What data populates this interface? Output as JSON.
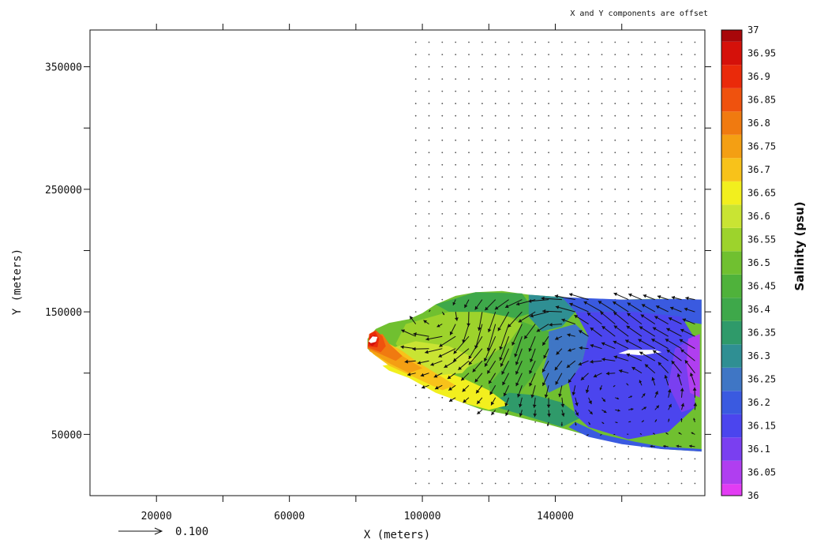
{
  "chart_data": {
    "type": "heatmap",
    "title": "",
    "note": "X and Y components are offset",
    "xlabel": "X (meters)",
    "ylabel": "Y (meters)",
    "xlim": [
      0,
      185000
    ],
    "ylim": [
      0,
      380000
    ],
    "x_ticks": [
      20000,
      60000,
      100000,
      140000
    ],
    "y_ticks": [
      50000,
      150000,
      250000,
      350000
    ],
    "x_ticks_unlabeled": [
      40000,
      80000,
      120000,
      160000
    ],
    "y_ticks_unlabeled": [
      100000,
      200000,
      300000
    ],
    "reference_vector": {
      "label": "0.100",
      "magnitude": 0.1
    },
    "colorbar": {
      "title": "Salinity (psu)",
      "levels": [
        "36",
        "36.05",
        "36.1",
        "36.15",
        "36.2",
        "36.25",
        "36.3",
        "36.35",
        "36.4",
        "36.45",
        "36.5",
        "36.55",
        "36.6",
        "36.65",
        "36.7",
        "36.75",
        "36.8",
        "36.85",
        "36.9",
        "36.95",
        "37"
      ],
      "colors": [
        "#e23cf3",
        "#b03ef0",
        "#7a3ff0",
        "#4b45ee",
        "#3a5ae0",
        "#3f76c5",
        "#2f8f93",
        "#2f9a6a",
        "#3ea84a",
        "#4fb23b",
        "#70c030",
        "#9dd32c",
        "#c9e433",
        "#f2ef1e",
        "#f8c21a",
        "#f49f13",
        "#f07a10",
        "#ef520e",
        "#ea2a0a",
        "#d5110a",
        "#a8070a"
      ]
    },
    "salinity_field": {
      "outline": [
        [
          83500,
          128000
        ],
        [
          86000,
          136000
        ],
        [
          90000,
          141000
        ],
        [
          96000,
          144000
        ],
        [
          100000,
          149000
        ],
        [
          104000,
          156000
        ],
        [
          110000,
          163000
        ],
        [
          116000,
          166000
        ],
        [
          124000,
          167000
        ],
        [
          132000,
          164000
        ],
        [
          142000,
          162000
        ],
        [
          152000,
          160000
        ],
        [
          160000,
          160000
        ],
        [
          168000,
          160500
        ],
        [
          176000,
          160500
        ],
        [
          184000,
          160000
        ],
        [
          184000,
          36000
        ],
        [
          172000,
          38000
        ],
        [
          162000,
          42000
        ],
        [
          154000,
          46000
        ],
        [
          146000,
          52000
        ],
        [
          138000,
          58000
        ],
        [
          132000,
          62000
        ],
        [
          126000,
          66000
        ],
        [
          118000,
          70000
        ],
        [
          110000,
          78000
        ],
        [
          104000,
          86000
        ],
        [
          98000,
          95000
        ],
        [
          94000,
          102000
        ],
        [
          90000,
          108000
        ],
        [
          86000,
          114000
        ],
        [
          83500,
          120000
        ]
      ],
      "patches": [
        {
          "level": "36.55",
          "points": [
            [
              95000,
              140000
            ],
            [
              108000,
              150000
            ],
            [
              122000,
              152000
            ],
            [
              130000,
              140000
            ],
            [
              126000,
              125000
            ],
            [
              118000,
              110000
            ],
            [
              110000,
              100000
            ],
            [
              102000,
              98000
            ],
            [
              96000,
              108000
            ],
            [
              92000,
              124000
            ]
          ]
        },
        {
          "level": "36.4",
          "points": [
            [
              104000,
              156000
            ],
            [
              116000,
              166000
            ],
            [
              130000,
              165000
            ],
            [
              134000,
              150000
            ],
            [
              128000,
              145000
            ],
            [
              118000,
              150000
            ],
            [
              108000,
              150000
            ]
          ]
        },
        {
          "level": "36.45",
          "points": [
            [
              130000,
              142000
            ],
            [
              138000,
              134000
            ],
            [
              138000,
              118000
            ],
            [
              134000,
              100000
            ],
            [
              128000,
              80000
            ],
            [
              122000,
              75000
            ],
            [
              120000,
              90000
            ],
            [
              126000,
              110000
            ]
          ]
        },
        {
          "level": "36.3",
          "points": [
            [
              132000,
              164000
            ],
            [
              142000,
              162000
            ],
            [
              146000,
              150000
            ],
            [
              142000,
              138000
            ],
            [
              136000,
              134000
            ],
            [
              132000,
              146000
            ]
          ]
        },
        {
          "level": "36.25",
          "points": [
            [
              138000,
              134000
            ],
            [
              146000,
              140000
            ],
            [
              150000,
              130000
            ],
            [
              148000,
              108000
            ],
            [
              144000,
              92000
            ],
            [
              138000,
              84000
            ],
            [
              136000,
              100000
            ],
            [
              138000,
              118000
            ]
          ]
        },
        {
          "level": "36.35",
          "points": [
            [
              120000,
              74000
            ],
            [
              130000,
              66000
            ],
            [
              142000,
              56000
            ],
            [
              148000,
              64000
            ],
            [
              142000,
              76000
            ],
            [
              134000,
              82000
            ],
            [
              126000,
              84000
            ]
          ]
        },
        {
          "level": "36.2",
          "points": [
            [
              142000,
              162000
            ],
            [
              160000,
              160000
            ],
            [
              176000,
              160500
            ],
            [
              184000,
              160000
            ],
            [
              184000,
              140000
            ],
            [
              170000,
              146000
            ],
            [
              156000,
              150000
            ],
            [
              146000,
              150000
            ]
          ]
        },
        {
          "level": "36.15",
          "points": [
            [
              146000,
              150000
            ],
            [
              164000,
              150000
            ],
            [
              178000,
              146000
            ],
            [
              182000,
              128000
            ],
            [
              182000,
              72000
            ],
            [
              174000,
              52000
            ],
            [
              162000,
              46000
            ],
            [
              150000,
              56000
            ],
            [
              146000,
              66000
            ],
            [
              144000,
              92000
            ],
            [
              148000,
              108000
            ],
            [
              150000,
              130000
            ]
          ]
        },
        {
          "level": "36.2",
          "points": [
            [
              146000,
              60000
            ],
            [
              154000,
              50000
            ],
            [
              164000,
              44000
            ],
            [
              172000,
              40000
            ],
            [
              184000,
              38000
            ],
            [
              184000,
              36000
            ],
            [
              172000,
              38000
            ],
            [
              160000,
              42000
            ],
            [
              150000,
              48000
            ],
            [
              144000,
              56000
            ]
          ]
        },
        {
          "level": "36.1",
          "points": [
            [
              176000,
              120000
            ],
            [
              182000,
              130000
            ],
            [
              182000,
              72000
            ],
            [
              178000,
              68000
            ],
            [
              174000,
              90000
            ]
          ]
        },
        {
          "level": "36.05",
          "points": [
            [
              180000,
              128000
            ],
            [
              183500,
              132000
            ],
            [
              183500,
              80000
            ],
            [
              180500,
              84000
            ],
            [
              179500,
              106000
            ]
          ]
        },
        {
          "level": "36.65",
          "points": [
            [
              88000,
              106000
            ],
            [
              96000,
              110000
            ],
            [
              104000,
              104000
            ],
            [
              112000,
              96000
            ],
            [
              120000,
              86000
            ],
            [
              126000,
              74000
            ],
            [
              120000,
              70000
            ],
            [
              112000,
              76000
            ],
            [
              104000,
              84000
            ],
            [
              96000,
              96000
            ],
            [
              90000,
              102000
            ]
          ]
        },
        {
          "level": "36.6",
          "points": [
            [
              90000,
              120000
            ],
            [
              98000,
              126000
            ],
            [
              108000,
              122000
            ],
            [
              116000,
              112000
            ],
            [
              112000,
              100000
            ],
            [
              104000,
              98000
            ],
            [
              96000,
              104000
            ],
            [
              90000,
              110000
            ]
          ]
        },
        {
          "level": "36.7",
          "points": [
            [
              85000,
              116000
            ],
            [
              90000,
              124000
            ],
            [
              94000,
              118000
            ],
            [
              98000,
              110000
            ],
            [
              104000,
              100000
            ],
            [
              110000,
              90000
            ],
            [
              106000,
              86000
            ],
            [
              98000,
              96000
            ],
            [
              90000,
              106000
            ]
          ]
        },
        {
          "level": "36.75",
          "points": [
            [
              84000,
              118000
            ],
            [
              86000,
              126000
            ],
            [
              90000,
              122000
            ],
            [
              94000,
              114000
            ],
            [
              100000,
              104000
            ],
            [
              96000,
              100000
            ],
            [
              90000,
              108000
            ]
          ]
        },
        {
          "level": "36.8",
          "points": [
            [
              83500,
              120000
            ],
            [
              84500,
              130000
            ],
            [
              88000,
              132000
            ],
            [
              90000,
              124000
            ],
            [
              94000,
              114000
            ],
            [
              92000,
              110000
            ],
            [
              87000,
              116000
            ]
          ]
        },
        {
          "level": "36.85",
          "points": [
            [
              83500,
              121000
            ],
            [
              84000,
              132000
            ],
            [
              86000,
              135000
            ],
            [
              88000,
              130000
            ],
            [
              89000,
              122000
            ],
            [
              87500,
              117000
            ]
          ]
        },
        {
          "level": "36.9",
          "points": [
            [
              83600,
              122000
            ],
            [
              84200,
              132000
            ],
            [
              85800,
              134000
            ],
            [
              87000,
              128000
            ],
            [
              86500,
              121000
            ]
          ]
        },
        {
          "level": "36.95",
          "points": [
            [
              83800,
              124000
            ],
            [
              84500,
              130000
            ],
            [
              85800,
              131000
            ],
            [
              86200,
              125000
            ],
            [
              85000,
              122000
            ]
          ]
        }
      ],
      "holes": [
        [
          [
            83800,
            126000
          ],
          [
            85000,
            130000
          ],
          [
            86500,
            129500
          ],
          [
            86000,
            125500
          ],
          [
            84500,
            124500
          ]
        ],
        [
          [
            159000,
            116000
          ],
          [
            162000,
            119000
          ],
          [
            170000,
            119000
          ],
          [
            172000,
            117000
          ],
          [
            166000,
            114500
          ]
        ]
      ]
    },
    "vector_grid": {
      "x_start": 98000,
      "x_step": 4000,
      "x_end": 182000,
      "y_start": 10000,
      "y_step": 10000,
      "y_end": 370000
    },
    "vector_field": {
      "eddies": [
        {
          "center": [
            110000,
            138000
          ],
          "radius": 15000,
          "circulation": -1
        },
        {
          "center": [
            160000,
            96000
          ],
          "radius": 26000,
          "circulation": 1
        },
        {
          "center": [
            138000,
            140000
          ],
          "radius": 20000,
          "circulation": 1
        }
      ],
      "mean_flow": [
        -0.04,
        0.0
      ]
    }
  }
}
